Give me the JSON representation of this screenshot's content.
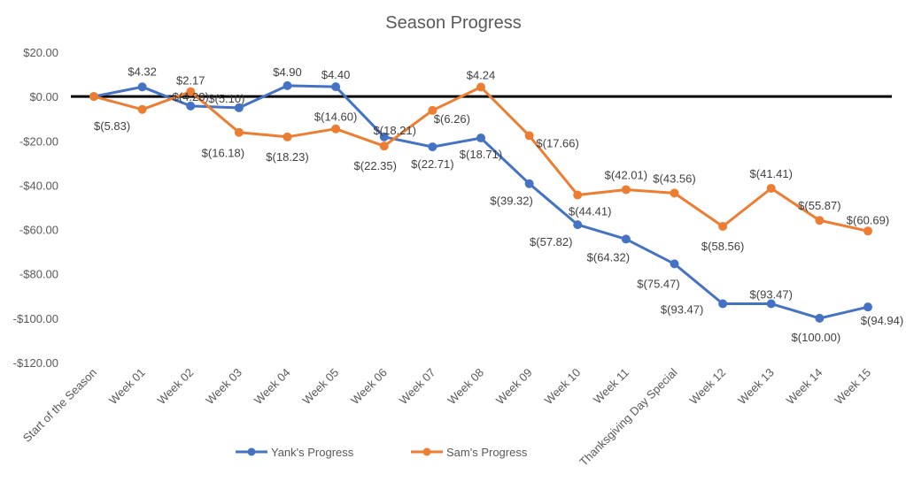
{
  "chart_data": {
    "type": "line",
    "title": "Season Progress",
    "xlabel": "",
    "ylabel": "",
    "ylim": [
      -120,
      20
    ],
    "y_ticks": [
      20,
      0,
      -20,
      -40,
      -60,
      -80,
      -100,
      -120
    ],
    "y_tick_labels": [
      "$20.00",
      "$0.00",
      "-$20.00",
      "-$40.00",
      "-$60.00",
      "-$80.00",
      "-$100.00",
      "-$120.00"
    ],
    "grid": false,
    "zero_line": true,
    "legend_position": "bottom",
    "categories": [
      "Start of the Season",
      "Week 01",
      "Week 02",
      "Week 03",
      "Week 04",
      "Week 05",
      "Week 06",
      "Week 07",
      "Week 08",
      "Week 09",
      "Week 10",
      "Week 11",
      "Thanksgiving Day Special",
      "Week 12",
      "Week 13",
      "Week 14",
      "Week 15"
    ],
    "series": [
      {
        "name": "Yank's Progress",
        "color": "#4472C4",
        "values": [
          0,
          4.32,
          -4.28,
          -5.1,
          4.9,
          4.4,
          -18.21,
          -22.71,
          -18.71,
          -39.32,
          -57.82,
          -64.32,
          -75.47,
          -93.47,
          -93.47,
          -100.0,
          -94.94
        ],
        "labels": [
          null,
          "$4.32",
          "$(4.28)",
          "$(5.10)",
          "$4.90",
          "$4.40",
          "$(18.21)",
          "$(22.71)",
          "$(18.71)",
          "$(39.32)",
          "$(57.82)",
          "$(64.32)",
          "$(75.47)",
          "$(93.47)",
          "$(93.47)",
          "$(100.00)",
          "$(94.94)"
        ]
      },
      {
        "name": "Sam's Progress",
        "color": "#ED7D31",
        "values": [
          0,
          -5.83,
          2.17,
          -16.18,
          -18.23,
          -14.6,
          -22.35,
          -6.26,
          4.24,
          -17.66,
          -44.41,
          -42.01,
          -43.56,
          -58.56,
          -41.41,
          -55.87,
          -60.69
        ],
        "labels": [
          null,
          "$(5.83)",
          "$2.17",
          "$(16.18)",
          "$(18.23)",
          "$(14.60)",
          "$(22.35)",
          "$(6.26)",
          "$4.24",
          "$(17.66)",
          "$(44.41)",
          "$(42.01)",
          "$(43.56)",
          "$(58.56)",
          "$(41.41)",
          "$(55.87)",
          "$(60.69)"
        ]
      }
    ]
  }
}
